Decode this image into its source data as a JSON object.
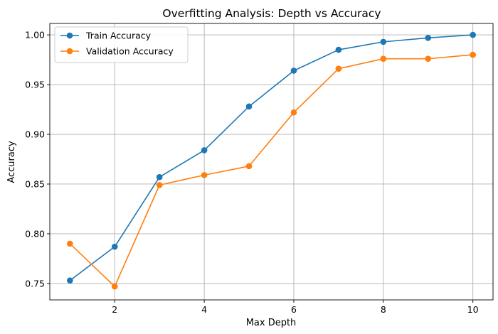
{
  "chart_data": {
    "type": "line",
    "title": "Overfitting Analysis: Depth vs Accuracy",
    "xlabel": "Max Depth",
    "ylabel": "Accuracy",
    "x": [
      1,
      2,
      3,
      4,
      5,
      6,
      7,
      8,
      9,
      10
    ],
    "xlim": [
      0.55,
      10.45
    ],
    "ylim": [
      0.7335,
      1.0115
    ],
    "xticks": [
      2,
      4,
      6,
      8,
      10
    ],
    "yticks": [
      0.75,
      0.8,
      0.85,
      0.9,
      0.95,
      1.0
    ],
    "xtick_labels": [
      "2",
      "4",
      "6",
      "8",
      "10"
    ],
    "ytick_labels": [
      "0.75",
      "0.80",
      "0.85",
      "0.90",
      "0.95",
      "1.00"
    ],
    "grid": true,
    "legend_position": "upper-left",
    "series": [
      {
        "name": "Train Accuracy",
        "color": "#1f77b4",
        "marker": "circle",
        "values": [
          0.753,
          0.787,
          0.857,
          0.884,
          0.928,
          0.964,
          0.985,
          0.993,
          0.997,
          1.0
        ]
      },
      {
        "name": "Validation Accuracy",
        "color": "#ff7f0e",
        "marker": "circle",
        "values": [
          0.79,
          0.747,
          0.849,
          0.859,
          0.868,
          0.922,
          0.966,
          0.976,
          0.976,
          0.98
        ]
      }
    ]
  }
}
